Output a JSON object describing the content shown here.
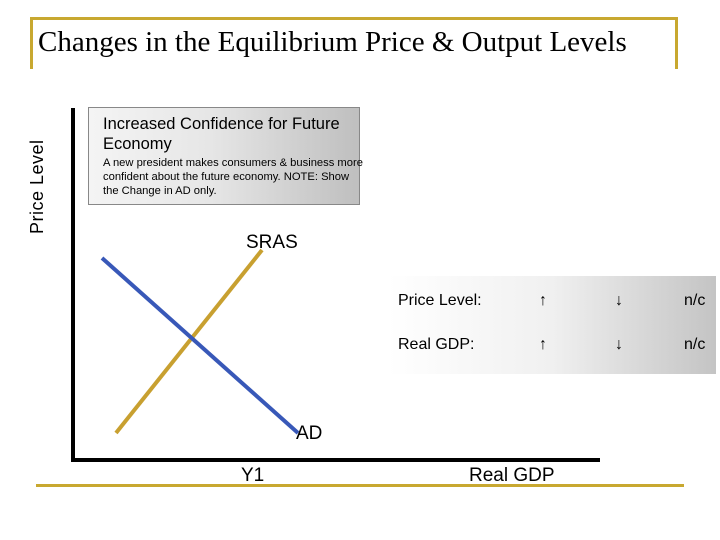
{
  "title": "Changes in the Equilibrium Price & Output Levels",
  "y_axis_label": "Price Level",
  "x_axis_label": "Real GDP",
  "scenario": {
    "heading": "Increased Confidence for Future Economy",
    "text": "A new president makes consumers & business more confident about the future economy. NOTE: Show the Change in AD only."
  },
  "curves": {
    "sras_label": "SRAS",
    "ad_label": "AD",
    "tick_label": "Y1"
  },
  "colors": {
    "frame": "#c8a830",
    "sras": "#c8a030",
    "ad": "#3858b8"
  },
  "table": {
    "rows": [
      {
        "label": "Price Level:",
        "up": "↑",
        "down": "↓",
        "none": "n/c"
      },
      {
        "label": "Real GDP:",
        "up": "↑",
        "down": "↓",
        "none": "n/c"
      }
    ]
  }
}
